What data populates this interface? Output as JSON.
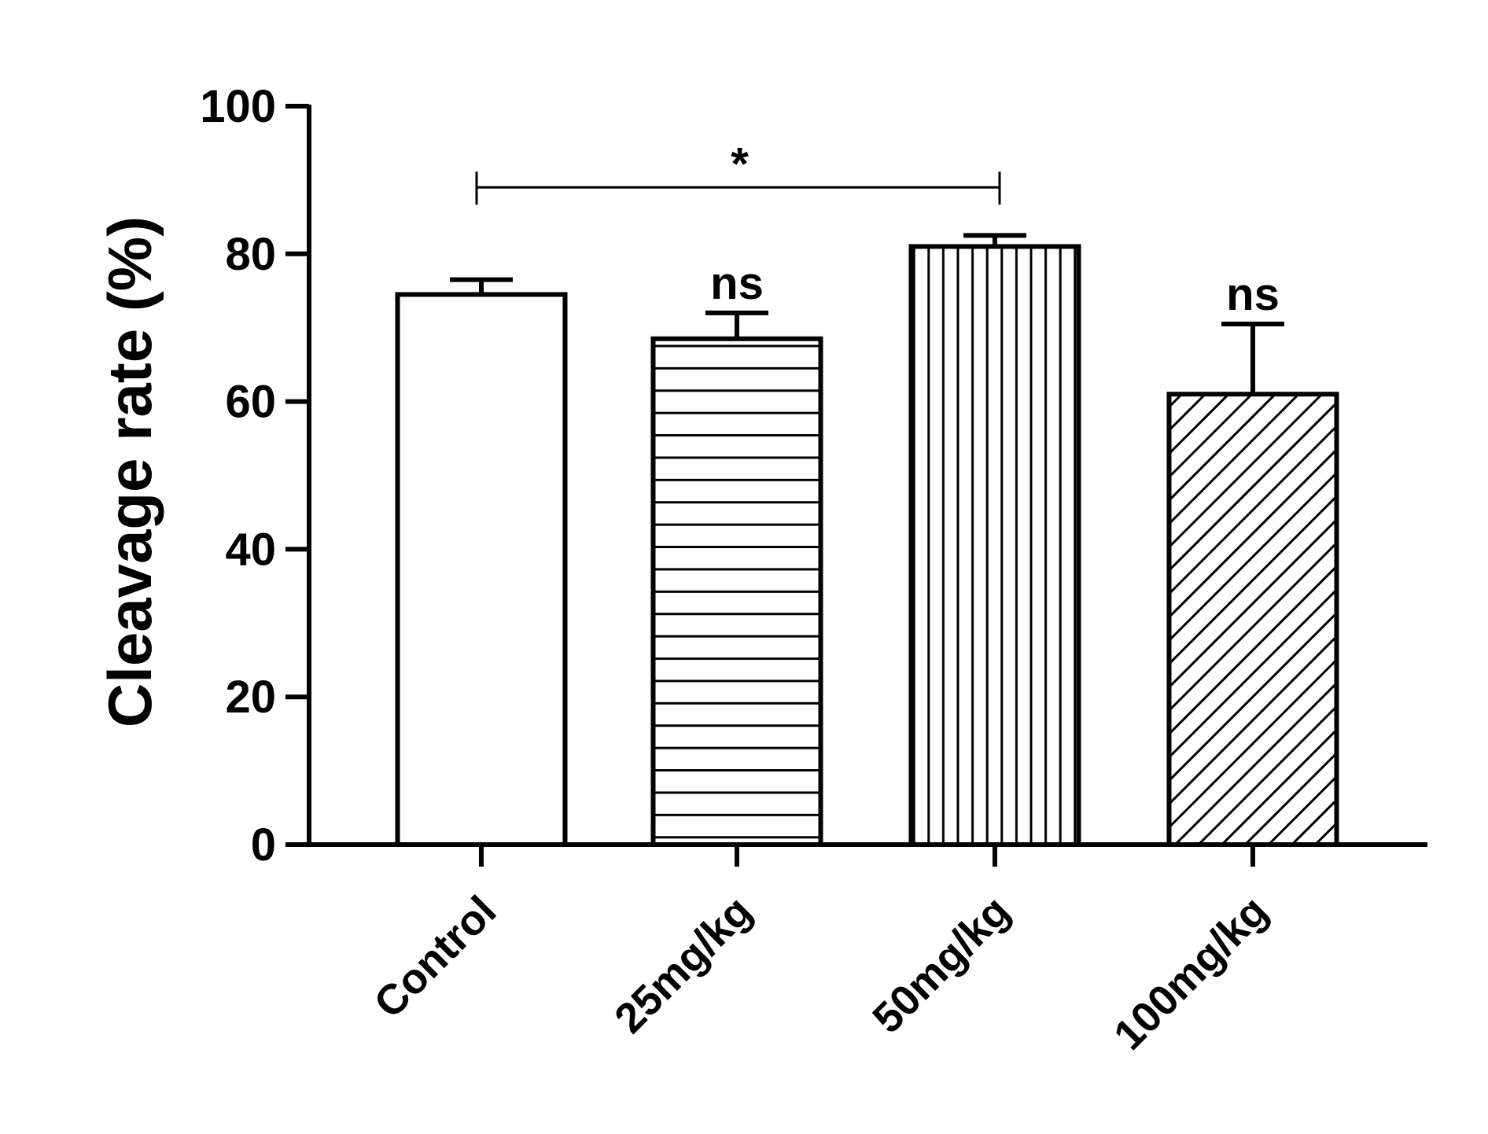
{
  "chart_data": {
    "type": "bar",
    "title": "",
    "xlabel": "",
    "ylabel": "Cleavage rate (%)",
    "ylim": [
      0,
      100
    ],
    "yticks": [
      0,
      20,
      40,
      60,
      80,
      100
    ],
    "categories": [
      "Control",
      "25mg/kg",
      "50mg/kg",
      "100mg/kg"
    ],
    "values": [
      74.5,
      68.5,
      81,
      61
    ],
    "errors": [
      2,
      3.5,
      1.5,
      9.5
    ],
    "patterns": [
      "none",
      "horizontal",
      "vertical",
      "diagonal"
    ],
    "grid": false,
    "annotations": {
      "bar_labels": [
        "",
        "ns",
        "",
        "ns"
      ],
      "bracket": {
        "from": "Control",
        "to": "50mg/kg",
        "y": 89,
        "label": "*"
      }
    }
  }
}
